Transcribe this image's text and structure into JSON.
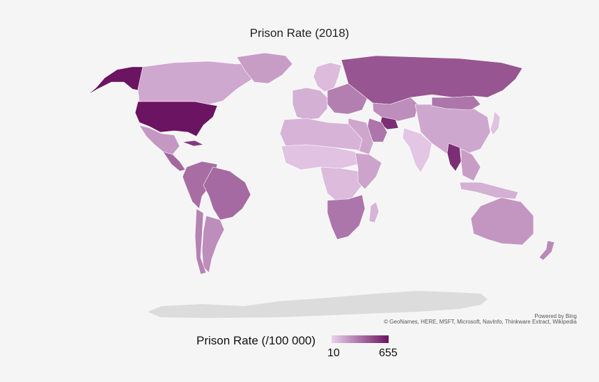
{
  "title": "Prison Rate (2018)",
  "legend": {
    "title": "Prison Rate (/100 000)",
    "min_label": "10",
    "max_label": "655",
    "color_low": "#ead0ec",
    "color_high": "#6b1461"
  },
  "attribution": {
    "line1": "Powered by Bing",
    "line2": "© GeoNames, HERE, MSFT, Microsoft, NavInfo, Thinkware Extract, Wikipedia"
  },
  "colors": {
    "background": "#f5f5f5",
    "no_data": "#dcdcdc",
    "border": "#ffffff"
  },
  "regions": [
    {
      "name": "Alaska",
      "rate": 655
    },
    {
      "name": "Canada",
      "rate": 114
    },
    {
      "name": "Greenland",
      "rate": 150
    },
    {
      "name": "United States",
      "rate": 655
    },
    {
      "name": "Mexico",
      "rate": 165
    },
    {
      "name": "Central America",
      "rate": 330
    },
    {
      "name": "Cuba",
      "rate": 510
    },
    {
      "name": "South America",
      "rate": 310
    },
    {
      "name": "Brazil",
      "rate": 324
    },
    {
      "name": "Argentina",
      "rate": 200
    },
    {
      "name": "Chile",
      "rate": 240
    },
    {
      "name": "Scandinavia",
      "rate": 60
    },
    {
      "name": "Western Europe",
      "rate": 90
    },
    {
      "name": "Eastern Europe",
      "rate": 250
    },
    {
      "name": "Russia",
      "rate": 402
    },
    {
      "name": "Kazakhstan",
      "rate": 200
    },
    {
      "name": "Turkmenistan",
      "rate": 552
    },
    {
      "name": "Iran",
      "rate": 284
    },
    {
      "name": "Middle East",
      "rate": 120
    },
    {
      "name": "China",
      "rate": 118
    },
    {
      "name": "Mongolia",
      "rate": 280
    },
    {
      "name": "India",
      "rate": 33
    },
    {
      "name": "Thailand",
      "rate": 553
    },
    {
      "name": "Southeast Asia",
      "rate": 150
    },
    {
      "name": "North Africa",
      "rate": 80
    },
    {
      "name": "Sahel",
      "rate": 40
    },
    {
      "name": "Central Africa",
      "rate": 60
    },
    {
      "name": "East Africa",
      "rate": 130
    },
    {
      "name": "Southern Africa",
      "rate": 280
    },
    {
      "name": "Madagascar",
      "rate": 80
    },
    {
      "name": "Japan",
      "rate": 41
    },
    {
      "name": "Indonesia",
      "rate": 90
    },
    {
      "name": "Australia",
      "rate": 172
    },
    {
      "name": "New Zealand",
      "rate": 214
    }
  ]
}
